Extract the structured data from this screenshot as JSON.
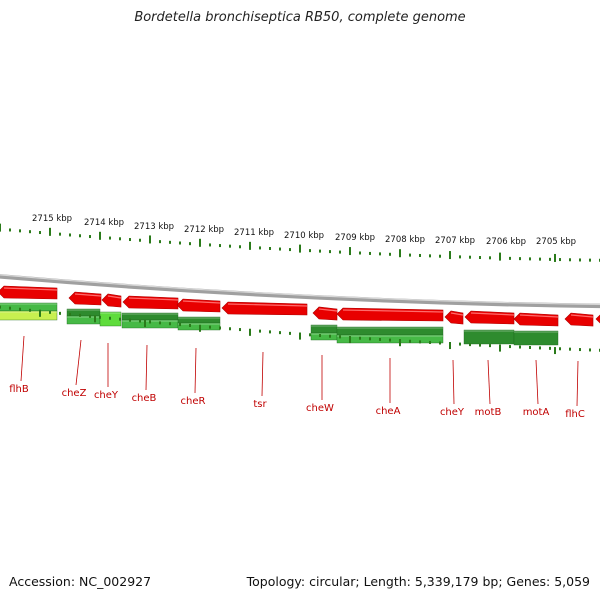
{
  "title": "Bordetella bronchiseptica RB50, complete genome",
  "footer": {
    "accession": "Accession: NC_002927",
    "summary": "Topology: circular; Length: 5,339,179 bp; Genes: 5,059"
  },
  "scale_labels": [
    "2715 kbp",
    "2714 kbp",
    "2713 kbp",
    "2712 kbp",
    "2711 kbp",
    "2710 kbp",
    "2709 kbp",
    "2708 kbp",
    "2707 kbp",
    "2706 kbp",
    "2705 kbp"
  ],
  "gene_labels": [
    "flhB",
    "cheZ",
    "cheY",
    "cheB",
    "cheR",
    "tsr",
    "cheW",
    "cheA",
    "cheY",
    "motB",
    "motA",
    "flhC"
  ],
  "colors": {
    "forward_gene": "#e80000",
    "expr_dark": "#2e8b2e",
    "expr_mid": "#46b946",
    "expr_bright": "#5fdc3c",
    "expr_yellow": "#c8f050",
    "label": "#c00000",
    "tick": "#2a7a1a",
    "backbone": "#909090"
  }
}
